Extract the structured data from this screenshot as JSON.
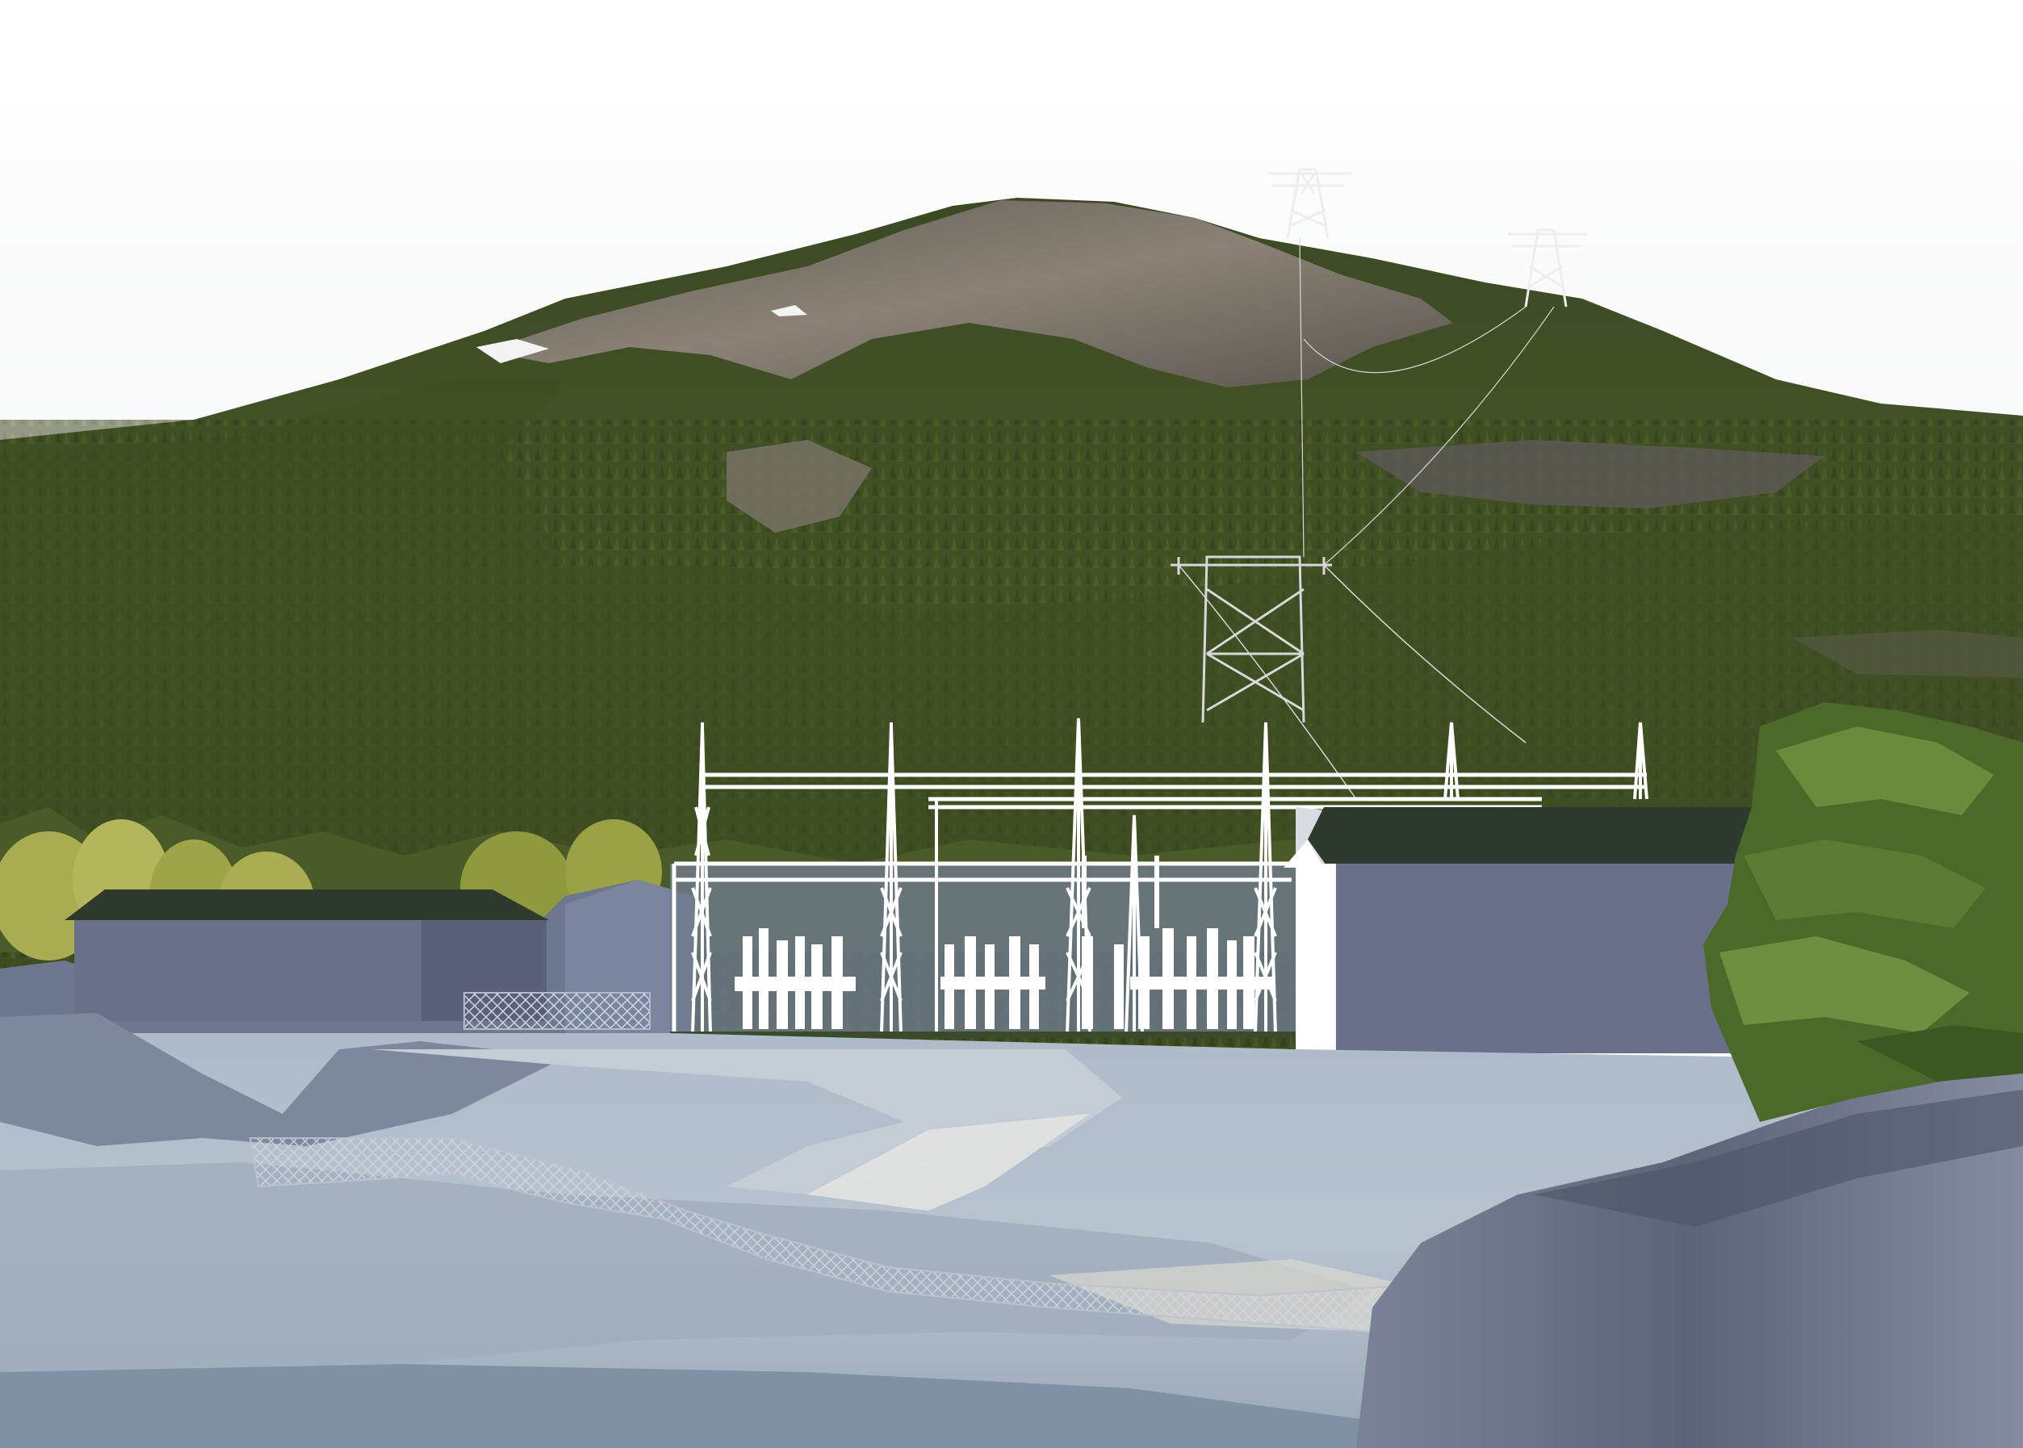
{
  "scene": {
    "subject": "photomontage-substation-visualization",
    "palette": {
      "sky_top": "#ffffff",
      "sky_bottom": "#e9eaec",
      "forest_dark": "#33401f",
      "forest_mid": "#4a5a2c",
      "forest_light": "#6b7a3a",
      "rock": "#6e6a62",
      "rock_light": "#8d857a",
      "birch": "#a7ad4e",
      "building_wall": "#6a6f8a",
      "building_roof": "#2f3a2e",
      "steel": "#ffffff",
      "ground_light": "#b9c4cf",
      "ground_mid": "#8f9db0",
      "ground_dark": "#5b6478",
      "tree_green": "#4f6e2c",
      "fence": "#c9cbd6"
    }
  }
}
